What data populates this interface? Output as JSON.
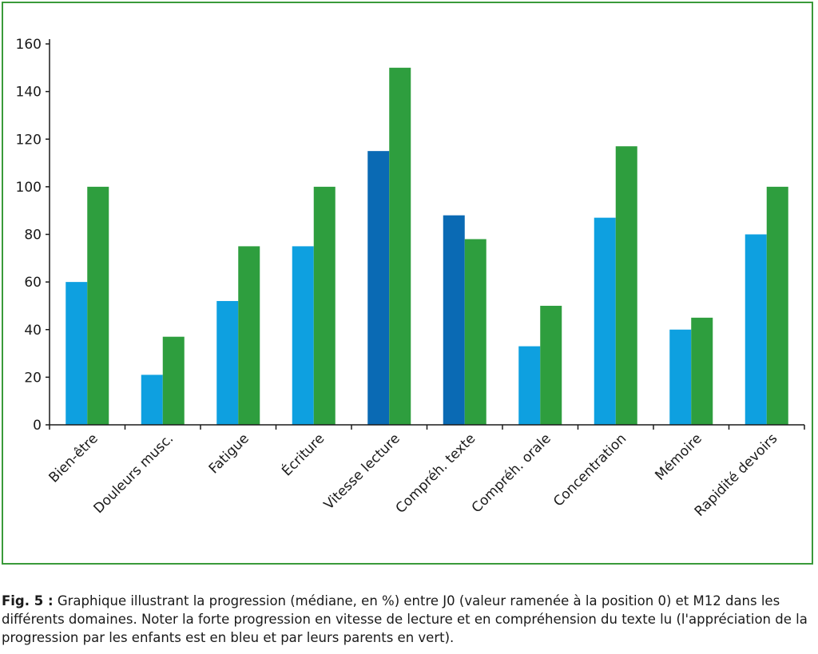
{
  "chart_data": {
    "type": "bar",
    "categories": [
      "Bien-être",
      "Douleurs musc.",
      "Fatigue",
      "Écriture",
      "Vitesse lecture",
      "Compréh. texte",
      "Compréh. orale",
      "Concentration",
      "Mémoire",
      "Rapidité devoirs"
    ],
    "series": [
      {
        "values": [
          60,
          21,
          52,
          75,
          115,
          88,
          33,
          87,
          40,
          80
        ],
        "color": "#0ea0e0",
        "highlight_color": "#0a6ab4",
        "highlight_indices": [
          4,
          5
        ]
      },
      {
        "values": [
          100,
          37,
          75,
          100,
          150,
          78,
          50,
          117,
          45,
          100
        ],
        "color": "#2e9e3e"
      }
    ],
    "yticks": [
      0,
      20,
      40,
      60,
      80,
      100,
      120,
      140,
      160
    ],
    "ylim": [
      0,
      160
    ],
    "grid": false,
    "frame_color": "#3a9a3a"
  },
  "caption": {
    "label": "Fig. 5 :",
    "text": " Graphique illustrant la progression (médiane, en %) entre J0 (valeur ramenée à la position 0) et M12 dans les différents domaines. Noter la forte progression en vitesse de lecture et en compréhension du texte lu (l'appréciation de la progression par les enfants est en bleu et par leurs parents en vert)."
  }
}
